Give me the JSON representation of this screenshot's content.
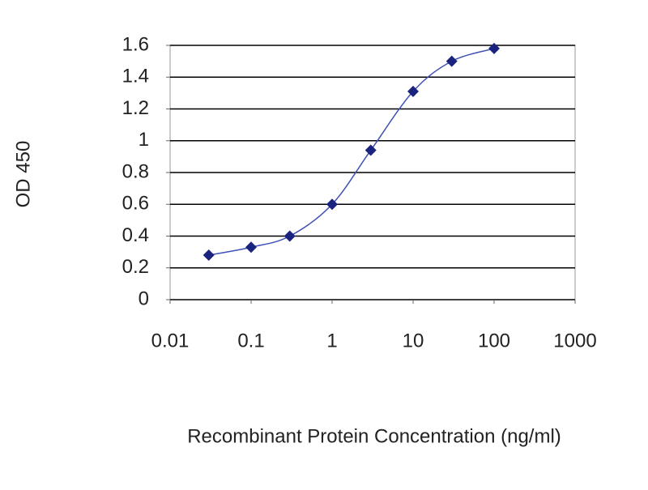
{
  "chart_data": {
    "type": "line",
    "x_label": "Recombinant Protein Concentration (ng/ml)",
    "y_label": "OD 450",
    "x": [
      0.03,
      0.1,
      0.3,
      1,
      3,
      10,
      30,
      100
    ],
    "values": [
      0.28,
      0.33,
      0.4,
      0.6,
      0.94,
      1.31,
      1.5,
      1.58
    ],
    "color": "#1a237e",
    "line_color": "#3f51b5",
    "x_log": true,
    "xlim": [
      0.01,
      1000
    ],
    "xticks": [
      0.01,
      0.1,
      1,
      10,
      100,
      1000
    ],
    "ylim": [
      0,
      1.6
    ],
    "yticks": [
      0,
      0.2,
      0.4,
      0.6,
      0.8,
      1,
      1.2,
      1.4,
      1.6
    ],
    "grid": true
  }
}
